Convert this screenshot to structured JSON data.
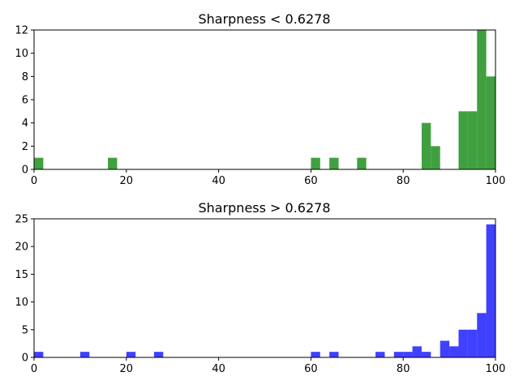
{
  "chart_data": [
    {
      "type": "bar",
      "title": "Sharpness < 0.6278",
      "color": "#008000",
      "opacity": 0.75,
      "xlabel": "",
      "ylabel": "",
      "xlim": [
        0,
        100
      ],
      "ylim": [
        0,
        12
      ],
      "xticks": [
        0,
        20,
        40,
        60,
        80,
        100
      ],
      "yticks": [
        0,
        2,
        4,
        6,
        8,
        10,
        12
      ],
      "bin_width": 2,
      "bins": [
        {
          "x": 0,
          "value": 1
        },
        {
          "x": 16,
          "value": 1
        },
        {
          "x": 60,
          "value": 1
        },
        {
          "x": 64,
          "value": 1
        },
        {
          "x": 70,
          "value": 1
        },
        {
          "x": 84,
          "value": 4
        },
        {
          "x": 86,
          "value": 2
        },
        {
          "x": 92,
          "value": 5
        },
        {
          "x": 94,
          "value": 5
        },
        {
          "x": 96,
          "value": 12
        },
        {
          "x": 98,
          "value": 8
        }
      ]
    },
    {
      "type": "bar",
      "title": "Sharpness > 0.6278",
      "color": "#0000ff",
      "opacity": 0.75,
      "xlabel": "",
      "ylabel": "",
      "xlim": [
        0,
        100
      ],
      "ylim": [
        0,
        25
      ],
      "xticks": [
        0,
        20,
        40,
        60,
        80,
        100
      ],
      "yticks": [
        0,
        5,
        10,
        15,
        20,
        25
      ],
      "bin_width": 2,
      "bins": [
        {
          "x": 0,
          "value": 1
        },
        {
          "x": 10,
          "value": 1
        },
        {
          "x": 20,
          "value": 1
        },
        {
          "x": 26,
          "value": 1
        },
        {
          "x": 60,
          "value": 1
        },
        {
          "x": 64,
          "value": 1
        },
        {
          "x": 74,
          "value": 1
        },
        {
          "x": 78,
          "value": 1
        },
        {
          "x": 80,
          "value": 1
        },
        {
          "x": 82,
          "value": 2
        },
        {
          "x": 84,
          "value": 1
        },
        {
          "x": 88,
          "value": 3
        },
        {
          "x": 90,
          "value": 2
        },
        {
          "x": 92,
          "value": 5
        },
        {
          "x": 94,
          "value": 5
        },
        {
          "x": 96,
          "value": 8
        },
        {
          "x": 98,
          "value": 24
        }
      ]
    }
  ]
}
